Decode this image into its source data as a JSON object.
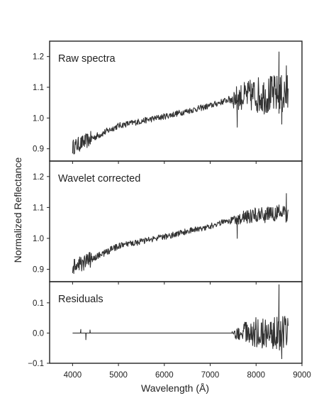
{
  "chart_data": [
    {
      "type": "line",
      "title": "Raw spectra",
      "xlim": [
        3500,
        9000
      ],
      "ylim": [
        0.86,
        1.25
      ],
      "yticks": [
        0.9,
        1.0,
        1.1,
        1.2
      ],
      "ytick_labels": [
        "0.9",
        "1.0",
        "1.1",
        "1.2"
      ],
      "trend": {
        "x": [
          4000,
          4300,
          5000,
          6000,
          7000,
          7500,
          8000,
          8700
        ],
        "y": [
          0.905,
          0.925,
          0.975,
          1.005,
          1.04,
          1.065,
          1.075,
          1.075
        ]
      },
      "noise": {
        "x": [
          4000,
          4400,
          4450,
          5000,
          7400,
          7500,
          8000,
          8700
        ],
        "amp": [
          0.025,
          0.025,
          0.012,
          0.01,
          0.01,
          0.035,
          0.06,
          0.07
        ]
      },
      "spikes": [
        {
          "x": 7590,
          "y": 0.97
        },
        {
          "x": 8500,
          "y": 1.215
        },
        {
          "x": 8560,
          "y": 0.98
        },
        {
          "x": 8660,
          "y": 1.17
        }
      ]
    },
    {
      "type": "line",
      "title": "Wavelet corrected",
      "xlim": [
        3500,
        9000
      ],
      "ylim": [
        0.86,
        1.25
      ],
      "yticks": [
        0.9,
        1.0,
        1.1,
        1.2
      ],
      "ytick_labels": [
        "0.9",
        "1.0",
        "1.1",
        "1.2"
      ],
      "trend": {
        "x": [
          4000,
          4300,
          5000,
          6000,
          7000,
          7500,
          8000,
          8700
        ],
        "y": [
          0.905,
          0.925,
          0.975,
          1.005,
          1.04,
          1.062,
          1.075,
          1.082
        ]
      },
      "noise": {
        "x": [
          4000,
          4400,
          4450,
          5000,
          7400,
          7500,
          8000,
          8700
        ],
        "amp": [
          0.025,
          0.025,
          0.012,
          0.01,
          0.01,
          0.02,
          0.025,
          0.03
        ]
      },
      "spikes": [
        {
          "x": 7590,
          "y": 1.0
        },
        {
          "x": 8660,
          "y": 1.145
        }
      ]
    },
    {
      "type": "line",
      "title": "Residuals",
      "xlim": [
        3500,
        9000
      ],
      "ylim": [
        -0.1,
        0.17
      ],
      "yticks": [
        -0.1,
        0.0,
        0.1
      ],
      "ytick_labels": [
        "−0.1",
        "0.0",
        "0.1"
      ],
      "trend": {
        "x": [
          4000,
          8700
        ],
        "y": [
          0.0,
          0.0
        ]
      },
      "noise": {
        "x": [
          4000,
          7500,
          7550,
          8000,
          8700
        ],
        "amp": [
          0.0,
          0.0,
          0.02,
          0.055,
          0.06
        ]
      },
      "wiggles": [
        {
          "x": 4180,
          "y": 0.012
        },
        {
          "x": 4290,
          "y": -0.022
        },
        {
          "x": 4380,
          "y": 0.01
        },
        {
          "x": 7480,
          "y": 0.005
        }
      ],
      "spikes": [
        {
          "x": 8500,
          "y": 0.16
        },
        {
          "x": 8560,
          "y": -0.085
        },
        {
          "x": 8650,
          "y": 0.04
        }
      ]
    }
  ],
  "xticks": [
    4000,
    5000,
    6000,
    7000,
    8000,
    9000
  ],
  "xtick_labels": [
    "4000",
    "5000",
    "6000",
    "7000",
    "8000",
    "9000"
  ],
  "xlabel": "Wavelength (Å)",
  "ylabel": "Normalized Reflectance",
  "colors": {
    "line": "#333333",
    "frame": "#222222"
  }
}
